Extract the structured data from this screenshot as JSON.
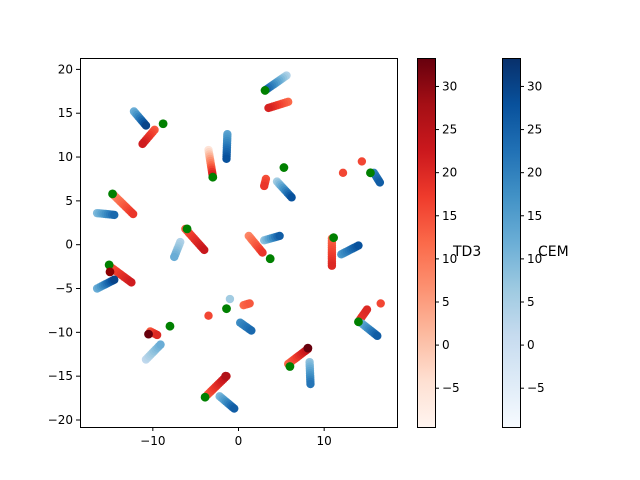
{
  "chart_data": {
    "type": "scatter",
    "title": "",
    "xlabel": "",
    "ylabel": "",
    "xlim": [
      -18.5,
      18.5
    ],
    "ylim": [
      -20.8,
      21.3
    ],
    "xticks": [
      -10,
      0,
      10
    ],
    "yticks": [
      -20,
      -15,
      -10,
      -5,
      0,
      5,
      10,
      15,
      20
    ],
    "grid": false,
    "marker_color_start": "#008000",
    "colorbars": [
      {
        "label": "TD3",
        "colormap": "Reds",
        "range": [
          -9.5,
          33.3
        ],
        "ticks": [
          -5,
          0,
          5,
          10,
          15,
          20,
          25,
          30
        ]
      },
      {
        "label": "CEM",
        "colormap": "Blues",
        "range": [
          -9.5,
          33.3
        ],
        "ticks": [
          -5,
          0,
          5,
          10,
          15,
          20,
          25,
          30
        ]
      }
    ],
    "series": [
      {
        "cmap": "Blues",
        "start": [
          5.6,
          19.3
        ],
        "end": [
          3.1,
          17.6
        ],
        "vmin": 4,
        "vmax": 26
      },
      {
        "cmap": "Reds",
        "start": [
          5.8,
          16.3
        ],
        "end": [
          3.5,
          15.6
        ],
        "vmin": 12,
        "vmax": 21
      },
      {
        "cmap": "Blues",
        "start": [
          -12.2,
          15.2
        ],
        "end": [
          -10.8,
          13.6
        ],
        "vmin": 12,
        "vmax": 30
      },
      {
        "cmap": "Reds",
        "start": [
          -9.8,
          13.1
        ],
        "end": [
          -11.2,
          11.5
        ],
        "vmin": 14,
        "vmax": 22
      },
      {
        "cmap": "Reds",
        "start": [
          -3.5,
          10.8
        ],
        "end": [
          -3.0,
          7.8
        ],
        "vmin": -5,
        "vmax": 23
      },
      {
        "cmap": "Blues",
        "start": [
          -1.3,
          12.6
        ],
        "end": [
          -1.4,
          9.8
        ],
        "vmin": 14,
        "vmax": 28
      },
      {
        "cmap": "Reds",
        "start": [
          3.2,
          7.5
        ],
        "end": [
          3.0,
          6.7
        ],
        "vmin": 15,
        "vmax": 18
      },
      {
        "cmap": "Blues",
        "start": [
          4.5,
          7.2
        ],
        "end": [
          6.2,
          5.4
        ],
        "vmin": 6,
        "vmax": 28
      },
      {
        "cmap": "Reds",
        "start": [
          14.4,
          9.5
        ],
        "end": [
          14.4,
          9.5
        ],
        "vmin": 16,
        "vmax": 16
      },
      {
        "cmap": "Reds",
        "start": [
          12.2,
          8.2
        ],
        "end": [
          12.2,
          8.2
        ],
        "vmin": 16,
        "vmax": 16
      },
      {
        "cmap": "Blues",
        "start": [
          15.8,
          8.2
        ],
        "end": [
          16.5,
          7.1
        ],
        "vmin": 20,
        "vmax": 26
      },
      {
        "cmap": "Reds",
        "start": [
          -14.5,
          5.6
        ],
        "end": [
          -12.3,
          3.5
        ],
        "vmin": 8,
        "vmax": 18
      },
      {
        "cmap": "Blues",
        "start": [
          -16.5,
          3.6
        ],
        "end": [
          -14.5,
          3.4
        ],
        "vmin": 10,
        "vmax": 24
      },
      {
        "cmap": "Reds",
        "start": [
          -6.2,
          1.8
        ],
        "end": [
          -4.0,
          -0.6
        ],
        "vmin": 14,
        "vmax": 23
      },
      {
        "cmap": "Blues",
        "start": [
          -6.8,
          0.3
        ],
        "end": [
          -7.5,
          -1.4
        ],
        "vmin": 4,
        "vmax": 12
      },
      {
        "cmap": "Reds",
        "start": [
          1.2,
          1.0
        ],
        "end": [
          2.8,
          -0.9
        ],
        "vmin": 8,
        "vmax": 18
      },
      {
        "cmap": "Blues",
        "start": [
          3.0,
          0.5
        ],
        "end": [
          4.8,
          1.0
        ],
        "vmin": 8,
        "vmax": 26
      },
      {
        "cmap": "Reds",
        "start": [
          10.9,
          0.7
        ],
        "end": [
          10.9,
          -2.4
        ],
        "vmin": 12,
        "vmax": 20
      },
      {
        "cmap": "Blues",
        "start": [
          12.0,
          -1.1
        ],
        "end": [
          14.0,
          -0.1
        ],
        "vmin": 16,
        "vmax": 28
      },
      {
        "cmap": "Reds",
        "start": [
          -15.0,
          -2.5
        ],
        "end": [
          -12.5,
          -4.3
        ],
        "vmin": 14,
        "vmax": 22
      },
      {
        "cmap": "Blues",
        "start": [
          -16.5,
          -5.0
        ],
        "end": [
          -14.5,
          -4.0
        ],
        "vmin": 12,
        "vmax": 30
      },
      {
        "cmap": "Reds",
        "start": [
          14.2,
          -8.5
        ],
        "end": [
          15.0,
          -7.4
        ],
        "vmin": 18,
        "vmax": 20
      },
      {
        "cmap": "Reds",
        "start": [
          16.6,
          -6.7
        ],
        "end": [
          16.6,
          -6.7
        ],
        "vmin": 16,
        "vmax": 16
      },
      {
        "cmap": "Blues",
        "start": [
          14.4,
          -9.0
        ],
        "end": [
          16.2,
          -10.4
        ],
        "vmin": 12,
        "vmax": 26
      },
      {
        "cmap": "Reds",
        "start": [
          -3.5,
          -8.1
        ],
        "end": [
          -3.5,
          -8.1
        ],
        "vmin": 16,
        "vmax": 16
      },
      {
        "cmap": "Blues",
        "start": [
          -1.0,
          -6.2
        ],
        "end": [
          -1.0,
          -6.2
        ],
        "vmin": 6,
        "vmax": 6
      },
      {
        "cmap": "Reds",
        "start": [
          0.6,
          -6.9
        ],
        "end": [
          1.3,
          -6.7
        ],
        "vmin": 12,
        "vmax": 14
      },
      {
        "cmap": "Blues",
        "start": [
          0.2,
          -8.9
        ],
        "end": [
          1.5,
          -9.8
        ],
        "vmin": 18,
        "vmax": 24
      },
      {
        "cmap": "Reds",
        "start": [
          -10.3,
          -9.9
        ],
        "end": [
          -9.5,
          -10.3
        ],
        "vmin": 14,
        "vmax": 20
      },
      {
        "cmap": "Blues",
        "start": [
          -10.8,
          -13.1
        ],
        "end": [
          -9.1,
          -11.4
        ],
        "vmin": 2,
        "vmax": 12
      },
      {
        "cmap": "Reds",
        "start": [
          5.8,
          -13.6
        ],
        "end": [
          8.1,
          -11.9
        ],
        "vmin": 12,
        "vmax": 24
      },
      {
        "cmap": "Blues",
        "start": [
          8.3,
          -13.4
        ],
        "end": [
          8.4,
          -15.9
        ],
        "vmin": 8,
        "vmax": 22
      },
      {
        "cmap": "Reds",
        "start": [
          -3.6,
          -17.1
        ],
        "end": [
          -1.4,
          -15.0
        ],
        "vmin": 14,
        "vmax": 24
      },
      {
        "cmap": "Blues",
        "start": [
          -2.2,
          -17.3
        ],
        "end": [
          -0.5,
          -18.7
        ],
        "vmin": 10,
        "vmax": 26
      }
    ],
    "special_points": [
      {
        "x": 3.1,
        "y": 17.6,
        "color": "#008000"
      },
      {
        "x": -8.8,
        "y": 13.8,
        "color": "#008000"
      },
      {
        "x": -3.0,
        "y": 7.7,
        "color": "#008000"
      },
      {
        "x": 5.3,
        "y": 8.8,
        "color": "#008000"
      },
      {
        "x": 15.4,
        "y": 8.2,
        "color": "#008000"
      },
      {
        "x": -14.7,
        "y": 5.8,
        "color": "#008000"
      },
      {
        "x": -6.0,
        "y": 1.8,
        "color": "#008000"
      },
      {
        "x": 3.7,
        "y": -1.6,
        "color": "#008000"
      },
      {
        "x": 11.1,
        "y": 0.8,
        "color": "#008000"
      },
      {
        "x": -15.1,
        "y": -2.3,
        "color": "#008000"
      },
      {
        "x": -15.0,
        "y": -3.1,
        "color": "#8b0000"
      },
      {
        "x": 14.0,
        "y": -8.8,
        "color": "#008000"
      },
      {
        "x": -1.4,
        "y": -7.3,
        "color": "#008000"
      },
      {
        "x": -10.5,
        "y": -10.2,
        "color": "#67000d"
      },
      {
        "x": -8.0,
        "y": -9.3,
        "color": "#008000"
      },
      {
        "x": 8.1,
        "y": -11.8,
        "color": "#67000d"
      },
      {
        "x": 6.0,
        "y": -13.9,
        "color": "#008000"
      },
      {
        "x": -3.9,
        "y": -17.4,
        "color": "#008000"
      },
      {
        "x": -1.5,
        "y": -15.0,
        "color": "#b11218"
      }
    ]
  }
}
